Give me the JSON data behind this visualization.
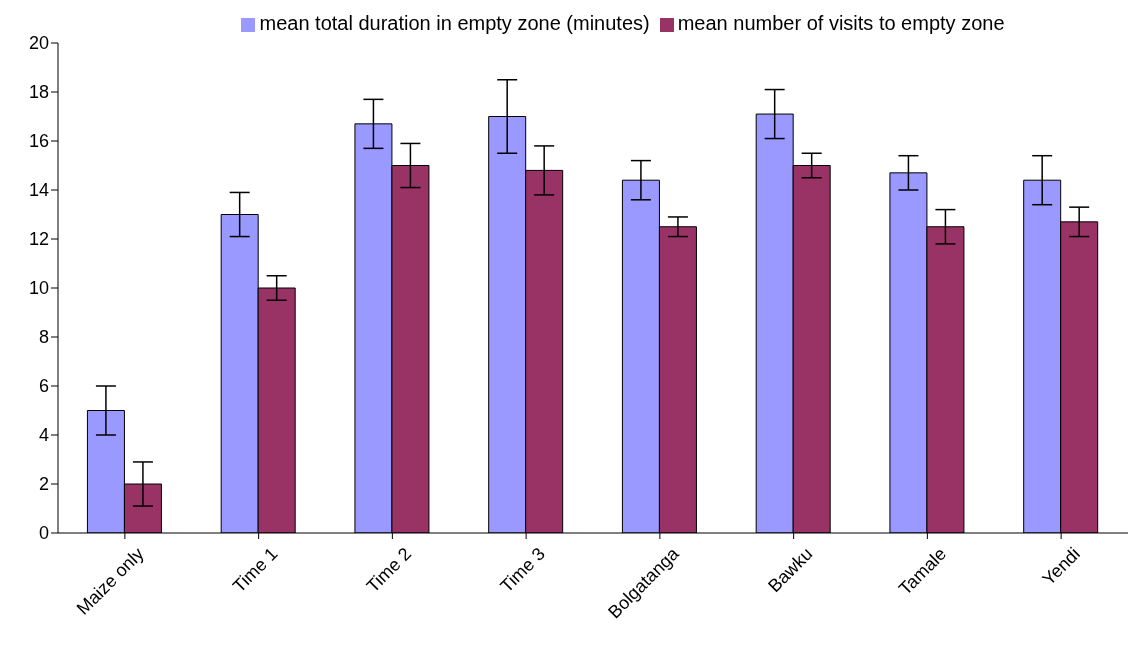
{
  "chart_data": {
    "type": "bar",
    "categories": [
      "Maize only",
      "Time 1",
      "Time 2",
      "Time 3",
      "Bolgatanga",
      "Bawku",
      "Tamale",
      "Yendi"
    ],
    "series": [
      {
        "name": "mean total duration in empty zone (minutes)",
        "color": "#9999ff",
        "values": [
          5,
          13,
          16.7,
          17,
          14.4,
          17.1,
          14.7,
          14.4
        ],
        "errors": [
          1,
          [
            12.1,
            13.9
          ],
          1,
          1.5,
          [
            13.6,
            15.2
          ],
          1,
          [
            14,
            15.4
          ],
          1
        ]
      },
      {
        "name": "mean number of visits to empty zone",
        "color": "#993366",
        "values": [
          2,
          10,
          15,
          14.8,
          12.5,
          15,
          12.5,
          12.7
        ],
        "errors": [
          0.9,
          0.5,
          0.9,
          1,
          0.4,
          0.5,
          0.7,
          0.6
        ]
      }
    ],
    "ylim": [
      0,
      20
    ],
    "yticks": [
      0,
      2,
      4,
      6,
      8,
      10,
      12,
      14,
      16,
      18,
      20
    ],
    "grid": false,
    "legend": "top"
  }
}
